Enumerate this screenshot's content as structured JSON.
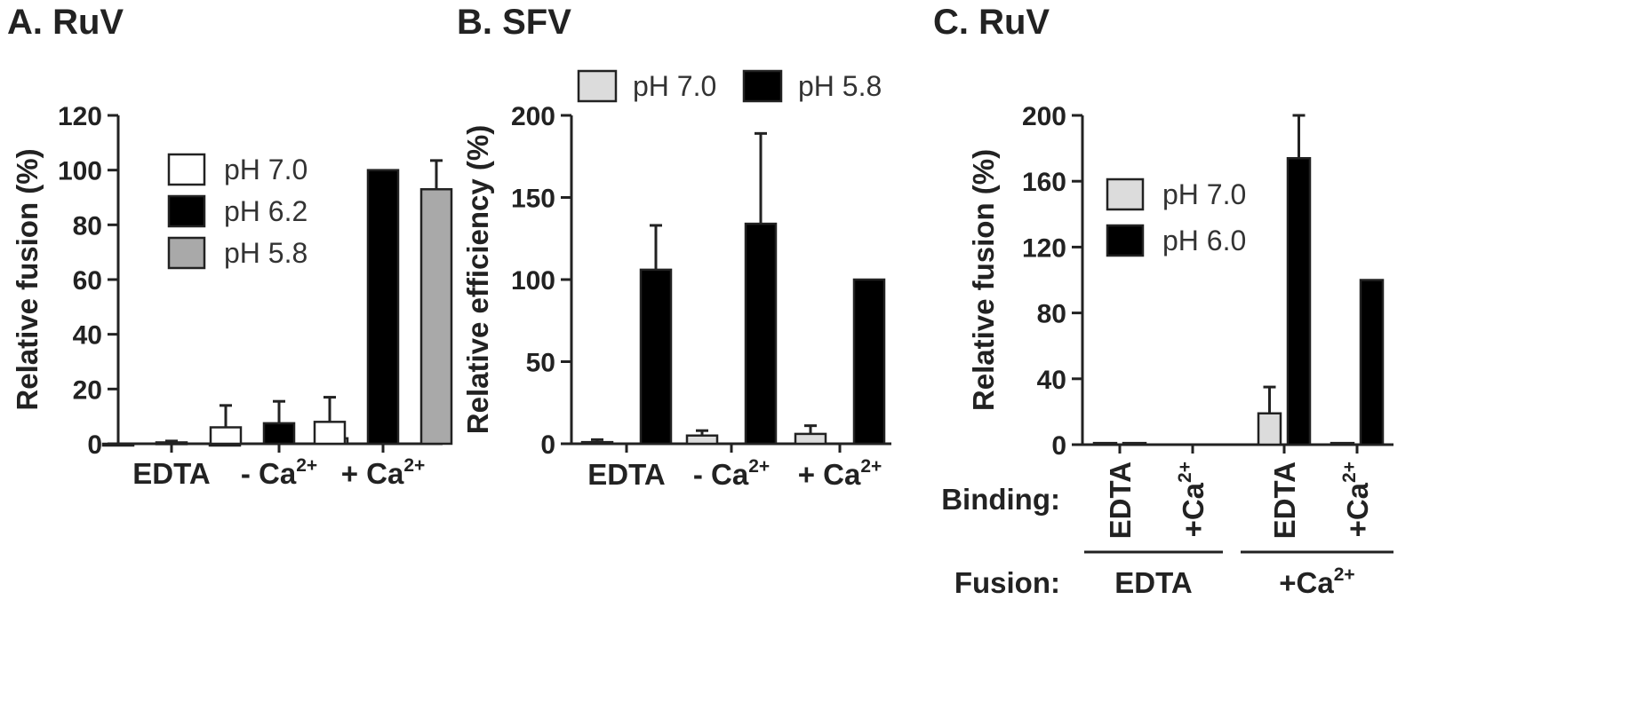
{
  "chart_data": [
    {
      "type": "bar",
      "title": "A. RuV",
      "ylabel": "Relative fusion (%)",
      "ylim": [
        0,
        120
      ],
      "yticks": [
        0,
        20,
        40,
        60,
        80,
        100,
        120
      ],
      "categories": [
        {
          "main": "EDTA",
          "sup": ""
        },
        {
          "main": "- Ca",
          "sup": "2+"
        },
        {
          "main": "+ Ca",
          "sup": "2+"
        }
      ],
      "legend_position": "top-center",
      "series": [
        {
          "name": "pH 7.0",
          "color": "#ffffff",
          "values": [
            0,
            6,
            8
          ],
          "errors": [
            0,
            8,
            9
          ]
        },
        {
          "name": "pH 6.2",
          "color": "#000000",
          "values": [
            0.5,
            7.5,
            100
          ],
          "errors": [
            0.5,
            8,
            0
          ]
        },
        {
          "name": "pH 5.8",
          "color": "#a9a9a9",
          "values": [
            0,
            2,
            93
          ],
          "errors": [
            0,
            2.5,
            10.5
          ]
        }
      ]
    },
    {
      "type": "bar",
      "title": "B. SFV",
      "ylabel": "Relative efficiency (%)",
      "ylim": [
        0,
        200
      ],
      "yticks": [
        0,
        50,
        100,
        150,
        200
      ],
      "categories": [
        {
          "main": "EDTA",
          "sup": ""
        },
        {
          "main": "- Ca",
          "sup": "2+"
        },
        {
          "main": "+ Ca",
          "sup": "2+"
        }
      ],
      "legend_position": "top",
      "series": [
        {
          "name": "pH 7.0",
          "color": "#dcdcdc",
          "values": [
            1,
            5,
            6
          ],
          "errors": [
            1.5,
            3,
            5
          ]
        },
        {
          "name": "pH 5.8",
          "color": "#000000",
          "values": [
            106,
            134,
            100
          ],
          "errors": [
            27,
            55,
            0
          ]
        }
      ]
    },
    {
      "type": "bar",
      "title": "C. RuV",
      "ylabel": "Relative fusion (%)",
      "ylim": [
        0,
        200
      ],
      "yticks": [
        0,
        40,
        80,
        120,
        160,
        200
      ],
      "categories": [
        {
          "binding": "EDTA",
          "binding_sup": "",
          "fusion_group": 0
        },
        {
          "binding": "+Ca",
          "binding_sup": "2+",
          "fusion_group": 0
        },
        {
          "binding": "EDTA",
          "binding_sup": "",
          "fusion_group": 1
        },
        {
          "binding": "+Ca",
          "binding_sup": "2+",
          "fusion_group": 1
        }
      ],
      "row_labels": {
        "binding": "Binding:",
        "fusion": "Fusion:"
      },
      "fusion_groups": [
        {
          "main": "EDTA",
          "sup": ""
        },
        {
          "main": "+Ca",
          "sup": "2+"
        }
      ],
      "legend_position": "top-center",
      "series": [
        {
          "name": "pH 7.0",
          "color": "#dcdcdc",
          "values": [
            1,
            0,
            19,
            1
          ],
          "errors": [
            0,
            0,
            16,
            0
          ]
        },
        {
          "name": "pH 6.0",
          "color": "#000000",
          "values": [
            1,
            0,
            174,
            100
          ],
          "errors": [
            0,
            0,
            26,
            0
          ]
        }
      ]
    }
  ]
}
